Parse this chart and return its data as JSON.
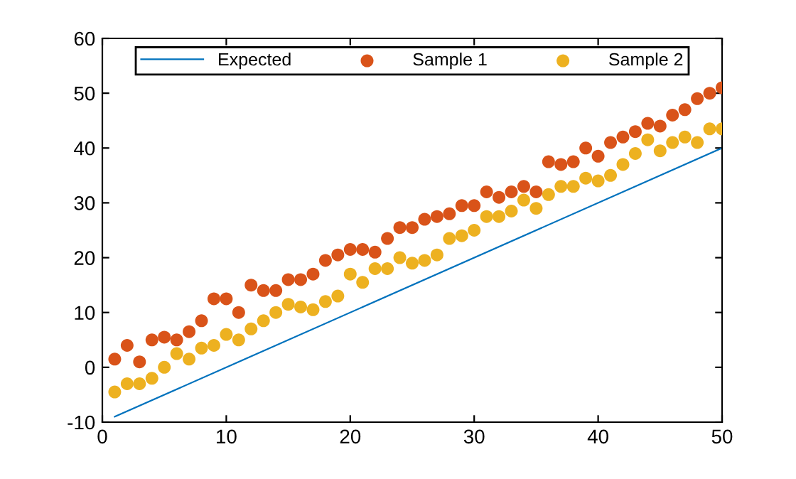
{
  "chart_data": {
    "type": "scatter",
    "xlim": [
      0,
      50
    ],
    "ylim": [
      -10,
      60
    ],
    "xticks": [
      0,
      10,
      20,
      30,
      40,
      50
    ],
    "yticks": [
      -10,
      0,
      10,
      20,
      30,
      40,
      50,
      60
    ],
    "grid": false,
    "legend": "top",
    "series": [
      {
        "name": "Expected",
        "type": "line",
        "color": "#0072bd",
        "x": [
          1,
          50
        ],
        "values": [
          -9,
          40
        ],
        "marker": "none",
        "line_style": "solid"
      },
      {
        "name": "Sample 1",
        "color": "#d95319",
        "marker": "circle",
        "x": [
          1,
          2,
          3,
          4,
          5,
          6,
          7,
          8,
          9,
          10,
          11,
          12,
          13,
          14,
          15,
          16,
          17,
          18,
          19,
          20,
          21,
          22,
          23,
          24,
          25,
          26,
          27,
          28,
          29,
          30,
          31,
          32,
          33,
          34,
          35,
          36,
          37,
          38,
          39,
          40,
          41,
          42,
          43,
          44,
          45,
          46,
          47,
          48,
          49,
          50
        ],
        "values": [
          1.5,
          4,
          1,
          5,
          5.5,
          5,
          6.5,
          8.5,
          12.5,
          12.5,
          10,
          15,
          14,
          14,
          16,
          16,
          17,
          19.5,
          20.5,
          21.5,
          21.5,
          21,
          23.5,
          25.5,
          25.5,
          27,
          27.5,
          28,
          29.5,
          29.5,
          32,
          31,
          32,
          33,
          32,
          37.5,
          37,
          37.5,
          40,
          38.5,
          41,
          42,
          43,
          44.5,
          44,
          46,
          47,
          49,
          50,
          51
        ]
      },
      {
        "name": "Sample 2",
        "color": "#edb120",
        "marker": "circle",
        "x": [
          1,
          2,
          3,
          4,
          5,
          6,
          7,
          8,
          9,
          10,
          11,
          12,
          13,
          14,
          15,
          16,
          17,
          18,
          19,
          20,
          21,
          22,
          23,
          24,
          25,
          26,
          27,
          28,
          29,
          30,
          31,
          32,
          33,
          34,
          35,
          36,
          37,
          38,
          39,
          40,
          41,
          42,
          43,
          44,
          45,
          46,
          47,
          48,
          49,
          50
        ],
        "values": [
          -4.5,
          -3,
          -3,
          -2,
          0,
          2.5,
          1.5,
          3.5,
          4,
          6,
          5,
          7,
          8.5,
          10,
          11.5,
          11,
          10.5,
          12,
          13,
          17,
          15.5,
          18,
          18,
          20,
          19,
          19.5,
          20.5,
          23.5,
          24,
          25,
          27.5,
          27.5,
          28.5,
          30.5,
          29,
          31.5,
          33,
          33,
          34.5,
          34,
          35,
          37,
          39,
          41.5,
          39.5,
          41,
          42,
          41,
          43.5,
          43.5
        ]
      }
    ]
  }
}
